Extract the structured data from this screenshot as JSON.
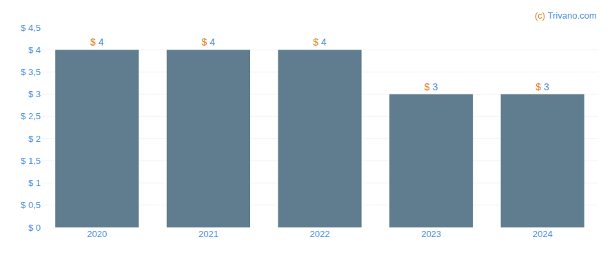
{
  "chart_data": {
    "type": "bar",
    "categories": [
      "2020",
      "2021",
      "2022",
      "2023",
      "2024"
    ],
    "values": [
      4,
      4,
      4,
      3,
      3
    ],
    "value_labels": [
      "$ 4",
      "$ 4",
      "$ 4",
      "$ 3",
      "$ 3"
    ],
    "color": "#5f7d8e",
    "ylim": [
      0,
      4.5
    ],
    "yticks": [
      {
        "value": 0,
        "label": "$ 0"
      },
      {
        "value": 0.5,
        "label": "$ 0,5"
      },
      {
        "value": 1,
        "label": "$ 1"
      },
      {
        "value": 1.5,
        "label": "$ 1,5"
      },
      {
        "value": 2,
        "label": "$ 2"
      },
      {
        "value": 2.5,
        "label": "$ 2,5"
      },
      {
        "value": 3,
        "label": "$ 3"
      },
      {
        "value": 3.5,
        "label": "$ 3,5"
      },
      {
        "value": 4,
        "label": "$ 4"
      },
      {
        "value": 4.5,
        "label": "$ 4,5"
      }
    ],
    "grid": true,
    "data_labels": true,
    "annotations": [
      "(c)",
      " Trivano.com"
    ]
  }
}
